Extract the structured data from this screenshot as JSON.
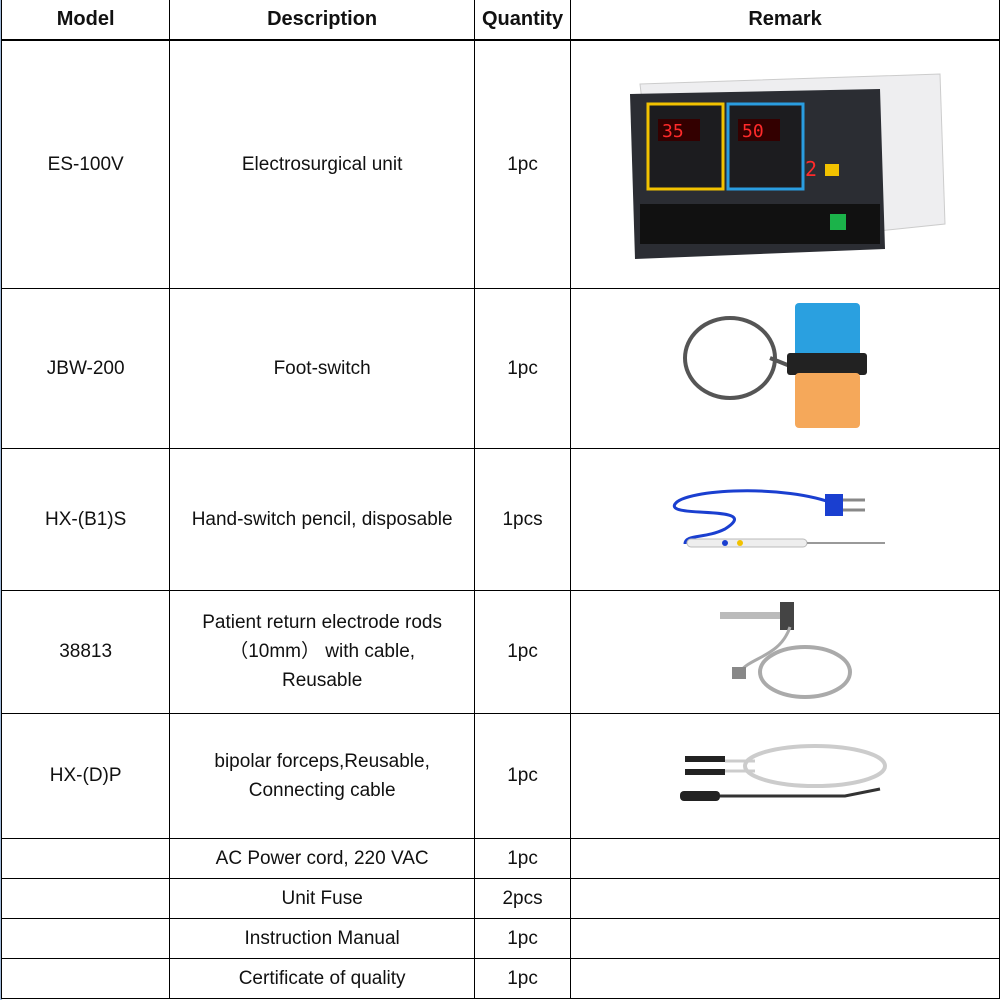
{
  "headers": {
    "model": "Model",
    "description": "Description",
    "quantity": "Quantity",
    "remark": "Remark"
  },
  "rows": [
    {
      "model": "ES-100V",
      "description": "Electrosurgical unit",
      "quantity": "1pc",
      "remark_image": "electrosurgical-unit-photo",
      "display_cut": "35",
      "display_coag": "50"
    },
    {
      "model": "JBW-200",
      "description": "Foot-switch",
      "quantity": "1pc",
      "remark_image": "foot-switch-photo"
    },
    {
      "model": "HX-(B1)S",
      "description": "Hand-switch pencil, disposable",
      "quantity": "1pcs",
      "remark_image": "hand-switch-pencil-photo"
    },
    {
      "model": "38813",
      "description_lines": [
        "Patient return electrode rods",
        "（10mm） with cable,",
        "Reusable"
      ],
      "quantity": "1pc",
      "remark_image": "return-electrode-photo"
    },
    {
      "model": "HX-(D)P",
      "description_lines": [
        "bipolar forceps,Reusable,",
        "Connecting cable"
      ],
      "quantity": "1pc",
      "remark_image": "bipolar-forceps-photo"
    },
    {
      "model": "",
      "description": "AC Power cord, 220 VAC",
      "quantity": "1pc"
    },
    {
      "model": "",
      "description": "Unit Fuse",
      "quantity": "2pcs"
    },
    {
      "model": "",
      "description": "Instruction Manual",
      "quantity": "1pc"
    },
    {
      "model": "",
      "description": "Certificate of quality",
      "quantity": "1pc"
    }
  ]
}
